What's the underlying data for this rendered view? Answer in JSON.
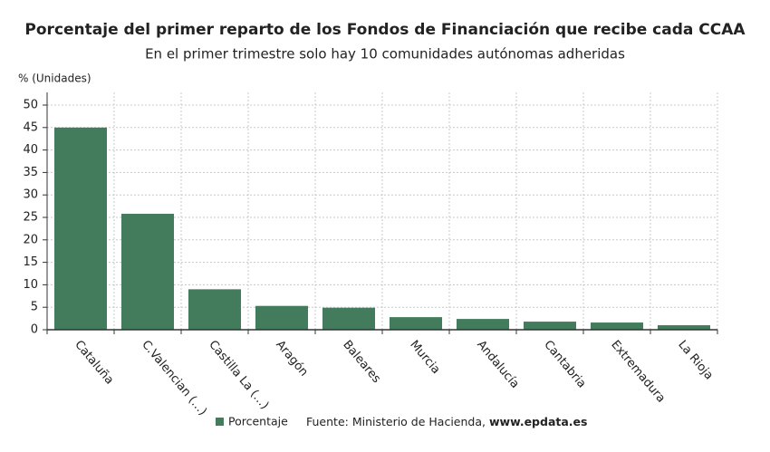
{
  "chart_data": {
    "type": "bar",
    "title": "Porcentaje del primer reparto de los Fondos de Financiación que recibe cada CCAA",
    "subtitle": "En el primer trimestre solo hay 10 comunidades autónomas adheridas",
    "y_axis_label": "% (Unidades)",
    "categories": [
      "Cataluña",
      "C.Valencian (…)",
      "Castilla La (…)",
      "Aragón",
      "Baleares",
      "Murcia",
      "Andalucía",
      "Cantabria",
      "Extremadura",
      "La Rioja"
    ],
    "series": [
      {
        "name": "Porcentaje",
        "color": "#437b5d",
        "values": [
          45,
          25.8,
          9,
          5.3,
          4.9,
          2.8,
          2.4,
          1.8,
          1.6,
          1.0
        ]
      }
    ],
    "ylim": [
      0,
      50
    ],
    "yticks": [
      0,
      5,
      10,
      15,
      20,
      25,
      30,
      35,
      40,
      45,
      50
    ],
    "grid": true,
    "source": "Fuente: Ministerio de Hacienda,",
    "source_link": "www.epdata.es"
  }
}
